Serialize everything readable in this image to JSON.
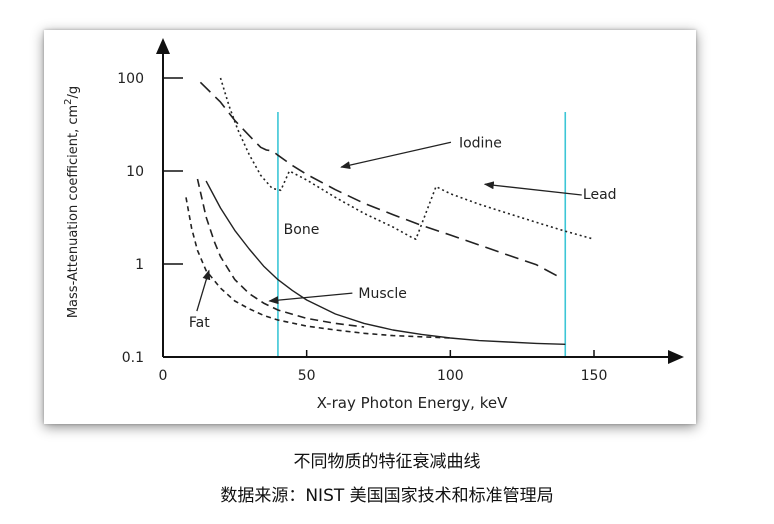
{
  "chart_data": {
    "type": "line",
    "xlabel": "X-ray Photon Energy, keV",
    "ylabel": "Mass-Attenuation coefficient, cm",
    "ylabel_sup": "2",
    "ylabel_tail": "/g",
    "xlim": [
      0,
      150
    ],
    "ylim": [
      0.1,
      100
    ],
    "y_scale": "log",
    "x_ticks": [
      0,
      50,
      100,
      150
    ],
    "x_tick_labels": [
      "0",
      "50",
      "100",
      "150"
    ],
    "y_ticks": [
      0.1,
      1,
      10,
      100
    ],
    "y_tick_labels": [
      "0.1",
      "1",
      "10",
      "100"
    ],
    "grid": false,
    "series": [
      {
        "name": "Iodine",
        "style": "long-dash",
        "x": [
          13,
          20,
          25,
          30,
          34,
          36,
          38,
          40,
          45,
          50,
          60,
          70,
          80,
          90,
          100,
          110,
          120,
          130,
          137
        ],
        "y": [
          90,
          55,
          35,
          24,
          18,
          16.8,
          16.5,
          14.8,
          11.5,
          9.2,
          6.3,
          4.5,
          3.4,
          2.6,
          2.05,
          1.6,
          1.25,
          0.98,
          0.75
        ]
      },
      {
        "name": "Lead",
        "style": "dotted",
        "x": [
          20,
          23,
          26,
          30,
          34,
          38,
          41,
          44,
          50,
          60,
          70,
          80,
          87,
          88,
          95,
          100,
          110,
          120,
          130,
          140,
          150
        ],
        "y": [
          100,
          50,
          28,
          15,
          9,
          6.5,
          6.2,
          10,
          8,
          5.2,
          3.5,
          2.5,
          1.9,
          1.85,
          6.8,
          5.7,
          4.4,
          3.5,
          2.8,
          2.25,
          1.85
        ]
      },
      {
        "name": "Bone",
        "style": "solid",
        "x": [
          15,
          20,
          25,
          30,
          35,
          40,
          45,
          50,
          60,
          70,
          80,
          90,
          100,
          110,
          120,
          130,
          140
        ],
        "y": [
          7.8,
          4.0,
          2.3,
          1.45,
          0.95,
          0.68,
          0.52,
          0.41,
          0.29,
          0.23,
          0.195,
          0.175,
          0.16,
          0.15,
          0.145,
          0.14,
          0.137
        ]
      },
      {
        "name": "Muscle",
        "style": "dashed",
        "x": [
          12,
          15,
          18,
          20,
          25,
          30,
          35,
          40,
          50,
          60,
          70
        ],
        "y": [
          8.2,
          3.2,
          1.7,
          1.2,
          0.68,
          0.48,
          0.38,
          0.32,
          0.26,
          0.23,
          0.21
        ]
      },
      {
        "name": "Fat",
        "style": "short-dash",
        "x": [
          8,
          10,
          12,
          15,
          20,
          25,
          30,
          35,
          40,
          50,
          60,
          70,
          80,
          90,
          100
        ],
        "y": [
          5.2,
          2.4,
          1.4,
          0.85,
          0.55,
          0.4,
          0.33,
          0.28,
          0.25,
          0.215,
          0.195,
          0.18,
          0.17,
          0.165,
          0.16
        ]
      }
    ],
    "reference_lines": [
      {
        "x": 40,
        "color": "#3cc6d6"
      },
      {
        "x": 140,
        "color": "#3cc6d6"
      }
    ],
    "annotations": [
      {
        "text": "Iodine",
        "text_x": 103,
        "text_y": 18,
        "arrow_x": 62,
        "arrow_y": 11
      },
      {
        "text": "Lead",
        "text_x": 152,
        "text_y": 5.0,
        "arrow_x": 112,
        "arrow_y": 7.2
      },
      {
        "text": "Bone",
        "text_x": 42,
        "text_y": 2.1,
        "arrow_x": null,
        "arrow_y": null
      },
      {
        "text": "Muscle",
        "text_x": 68,
        "text_y": 0.43,
        "arrow_x": 37,
        "arrow_y": 0.4
      },
      {
        "text": "Fat",
        "text_x": 9,
        "text_y": 0.21,
        "arrow_x": 16,
        "arrow_y": 0.85
      }
    ]
  },
  "caption": {
    "line1": "不同物质的特征衰减曲线",
    "line2": "数据来源：NIST 美国国家技术和标准管理局"
  }
}
